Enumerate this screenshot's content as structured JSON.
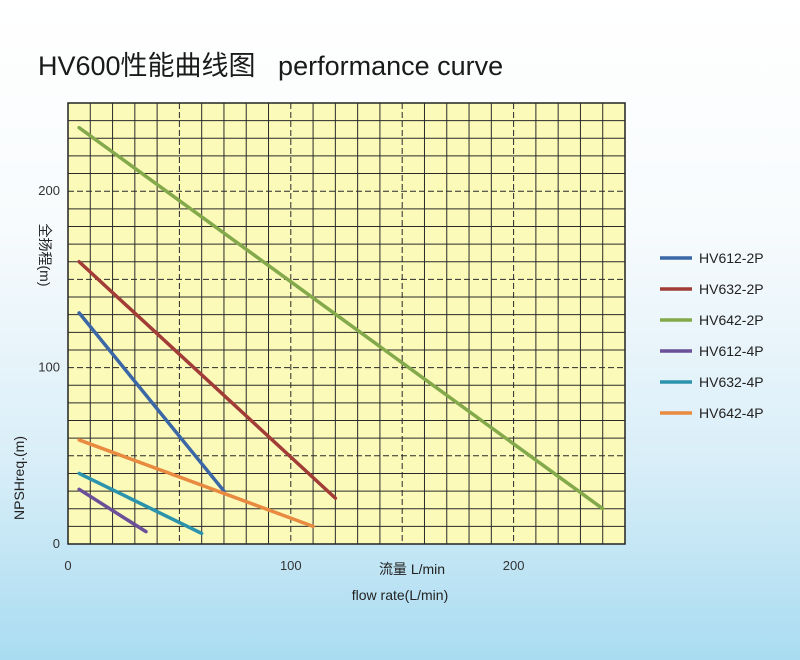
{
  "title": "HV600性能曲线图   performance curve",
  "chart_data": {
    "type": "line",
    "xlabel_cn": "流量 L/min",
    "xlabel_en": "flow rate(L/min)",
    "ylabel_cn": "全扬程(m)",
    "ylabel_en": "NPSHreq.(m)",
    "xlim": [
      0,
      250
    ],
    "ylim": [
      0,
      250
    ],
    "x_ticks": [
      0,
      100,
      200
    ],
    "y_ticks": [
      0,
      100,
      200
    ],
    "grid": true,
    "legend_position": "right",
    "series": [
      {
        "name": "HV612-2P",
        "color": "#3b67a7",
        "points": [
          [
            5,
            131
          ],
          [
            70,
            30
          ]
        ]
      },
      {
        "name": "HV632-2P",
        "color": "#a23c36",
        "points": [
          [
            5,
            160
          ],
          [
            120,
            26
          ]
        ]
      },
      {
        "name": "HV642-2P",
        "color": "#83a94b",
        "points": [
          [
            5,
            236
          ],
          [
            240,
            20
          ]
        ]
      },
      {
        "name": "HV612-4P",
        "color": "#6b4f99",
        "points": [
          [
            5,
            31
          ],
          [
            35,
            7
          ]
        ]
      },
      {
        "name": "HV632-4P",
        "color": "#2c93ad",
        "points": [
          [
            5,
            40
          ],
          [
            60,
            6
          ]
        ]
      },
      {
        "name": "HV642-4P",
        "color": "#e88a3f",
        "points": [
          [
            5,
            59
          ],
          [
            110,
            10
          ]
        ]
      }
    ]
  }
}
